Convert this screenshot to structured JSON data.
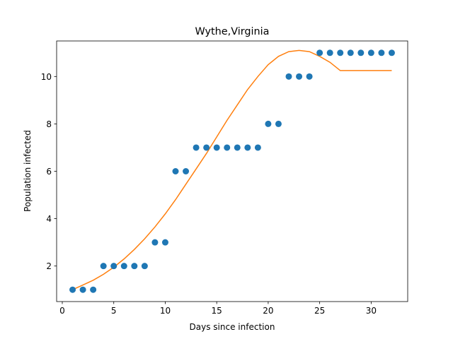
{
  "chart_data": {
    "type": "scatter",
    "title": "Wythe,Virginia",
    "xlabel": "Days since infection",
    "ylabel": "Population infected",
    "xlim": [
      -0.55,
      33.55
    ],
    "ylim": [
      0.5,
      11.5
    ],
    "xticks": [
      0,
      5,
      10,
      15,
      20,
      25,
      30
    ],
    "yticks": [
      2,
      4,
      6,
      8,
      10
    ],
    "grid": false,
    "legend": "none",
    "series": [
      {
        "kind": "scatter",
        "color": "#1f77b4",
        "x": [
          1,
          2,
          3,
          4,
          5,
          6,
          7,
          8,
          9,
          10,
          11,
          12,
          13,
          14,
          15,
          16,
          17,
          18,
          19,
          20,
          21,
          22,
          23,
          24,
          25,
          26,
          27,
          28,
          29,
          30,
          31,
          32
        ],
        "y": [
          1,
          1,
          1,
          2,
          2,
          2,
          2,
          2,
          3,
          3,
          6,
          6,
          7,
          7,
          7,
          7,
          7,
          7,
          7,
          8,
          8,
          10,
          10,
          10,
          11,
          11,
          11,
          11,
          11,
          11,
          11,
          11
        ]
      },
      {
        "kind": "line",
        "color": "#ff7f0e",
        "x": [
          1,
          2,
          3,
          4,
          5,
          6,
          7,
          8,
          9,
          10,
          11,
          12,
          13,
          14,
          15,
          16,
          17,
          18,
          19,
          20,
          21,
          22,
          23,
          24,
          25,
          26,
          27,
          28,
          29,
          30,
          31,
          32
        ],
        "y": [
          1.0,
          1.2,
          1.4,
          1.65,
          1.95,
          2.3,
          2.7,
          3.15,
          3.65,
          4.2,
          4.8,
          5.45,
          6.1,
          6.75,
          7.45,
          8.15,
          8.8,
          9.45,
          10.0,
          10.5,
          10.85,
          11.05,
          11.1,
          11.05,
          10.85,
          10.6,
          10.25,
          10.25,
          10.25,
          10.25,
          10.25,
          10.25
        ]
      }
    ]
  }
}
